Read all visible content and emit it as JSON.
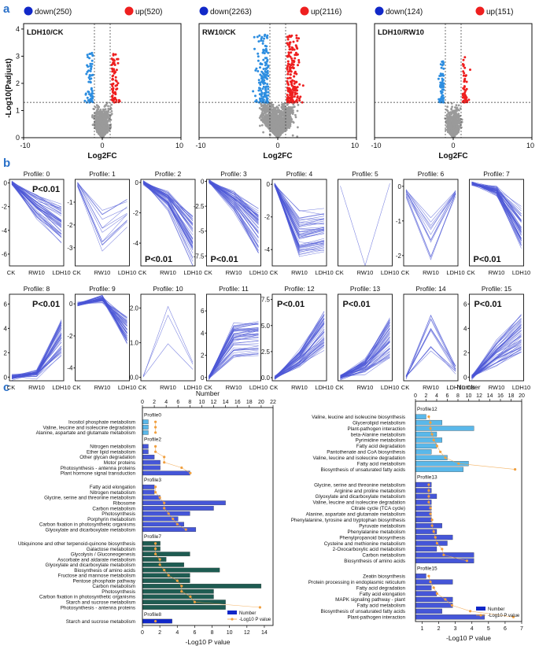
{
  "colors": {
    "down": "#2e8ee0",
    "up": "#ee1f1f",
    "ns": "#9a9a9a",
    "profile_line": "#4b55d6",
    "c_light": "#5ab8ea",
    "c_mid": "#4556d8",
    "c_dark": "#1e5c52",
    "c_blue": "#1128c8",
    "dot": "#f0a040"
  },
  "panel_labels": {
    "a": "a",
    "b": "b",
    "c": "c"
  },
  "panel_a": {
    "ylabel": "-Log10(Padjust)",
    "plots": [
      {
        "id": "ldh10_ck",
        "title": "LDH10/CK",
        "down_label": "down(250)",
        "up_label": "up(520)",
        "xlabel": "Log2FC",
        "x_ticks": [
          "-10",
          "0",
          "10"
        ],
        "y_ticks": [
          "0",
          "1",
          "2",
          "3",
          "4"
        ],
        "ylim": [
          0,
          4.2
        ],
        "xlim": [
          -10,
          10
        ],
        "density": 1.0,
        "spread": 0.55
      },
      {
        "id": "rw10_ck",
        "title": "RW10/CK",
        "down_label": "down(2263)",
        "up_label": "up(2116)",
        "xlabel": "Log2FC",
        "x_ticks": [
          "-10",
          "0",
          "10"
        ],
        "y_ticks": [],
        "ylim": [
          0,
          4.2
        ],
        "xlim": [
          -10,
          10
        ],
        "density": 2.4,
        "spread": 1.0
      },
      {
        "id": "ldh10_rw10",
        "title": "LDH10/RW10",
        "down_label": "down(124)",
        "up_label": "up(151)",
        "xlabel": "Log2FC",
        "x_ticks": [
          "-10",
          "0",
          "10"
        ],
        "y_ticks": [],
        "ylim": [
          0,
          4.2
        ],
        "xlim": [
          -10,
          10
        ],
        "density": 0.8,
        "spread": 0.45
      }
    ]
  },
  "panel_b": {
    "x_ticks": [
      "CK",
      "RW10",
      "LDH10"
    ],
    "profiles": [
      {
        "title": "Profile: 0",
        "pval": "P<0.01",
        "pval_pos": "top",
        "y_ticks": [
          "0",
          "-2",
          "-4",
          "-6"
        ],
        "ylim": [
          -7,
          0.3
        ],
        "pattern": [
          0,
          -2,
          -3.5
        ]
      },
      {
        "title": "Profile: 1",
        "pval": "",
        "pval_pos": "",
        "y_ticks": [
          "-1",
          "-2",
          "-3"
        ],
        "ylim": [
          -3.8,
          0
        ],
        "pattern": [
          -0.2,
          -2.2,
          -1.4
        ]
      },
      {
        "title": "Profile: 2",
        "pval": "P<0.01",
        "pval_pos": "bottom",
        "y_ticks": [
          "0",
          "-2",
          "-4"
        ],
        "ylim": [
          -5.5,
          0.2
        ],
        "pattern": [
          0,
          -1.2,
          -3.8
        ]
      },
      {
        "title": "Profile: 3",
        "pval": "P<0.01",
        "pval_pos": "bottom",
        "y_ticks": [
          "0",
          "-2.5",
          "-5",
          "-7.5"
        ],
        "ylim": [
          -8.5,
          0.2
        ],
        "pattern": [
          0,
          -2,
          -5
        ]
      },
      {
        "title": "Profile: 4",
        "pval": "",
        "pval_pos": "",
        "y_ticks": [
          "0",
          "-2",
          "-4"
        ],
        "ylim": [
          -5,
          0.3
        ],
        "pattern": [
          0,
          -3,
          -2.8
        ]
      },
      {
        "title": "Profile: 5",
        "pval": "",
        "pval_pos": "",
        "y_ticks": [],
        "ylim": [
          -4,
          0.3
        ],
        "pattern": [
          0,
          -3.6,
          0
        ]
      },
      {
        "title": "Profile: 6",
        "pval": "",
        "pval_pos": "",
        "y_ticks": [
          "0",
          "-1",
          "-2"
        ],
        "ylim": [
          -2.3,
          0.2
        ],
        "pattern": [
          -0.2,
          -1.6,
          -0.2
        ]
      },
      {
        "title": "Profile: 7",
        "pval": "P<0.01",
        "pval_pos": "bottom",
        "y_ticks": [],
        "ylim": [
          -6,
          0.3
        ],
        "pattern": [
          0,
          -0.5,
          -3.2
        ]
      },
      {
        "title": "Profile: 8",
        "pval": "P<0.01",
        "pval_pos": "top",
        "y_ticks": [
          "6",
          "4",
          "2",
          "0"
        ],
        "ylim": [
          -0.3,
          6.8
        ],
        "pattern": [
          0,
          0.3,
          3.2
        ]
      },
      {
        "title": "Profile: 9",
        "pval": "",
        "pval_pos": "",
        "y_ticks": [
          "0",
          "-2",
          "-4"
        ],
        "ylim": [
          -4.8,
          0.6
        ],
        "pattern": [
          0,
          0.3,
          -1.6
        ]
      },
      {
        "title": "Profile: 10",
        "pval": "",
        "pval_pos": "",
        "y_ticks": [
          "2.0",
          "1.0",
          "0.0"
        ],
        "ylim": [
          -0.1,
          2.4
        ],
        "pattern": [
          0,
          1.6,
          0.3
        ]
      },
      {
        "title": "Profile: 11",
        "pval": "",
        "pval_pos": "",
        "y_ticks": [
          "6",
          "4",
          "2",
          "0"
        ],
        "ylim": [
          -0.3,
          7.5
        ],
        "pattern": [
          0,
          3.4,
          3.6
        ]
      },
      {
        "title": "Profile: 12",
        "pval": "P<0.01",
        "pval_pos": "top",
        "y_ticks": [
          "7.5",
          "5.0",
          "2.5",
          "0.0"
        ],
        "ylim": [
          -0.3,
          8
        ],
        "pattern": [
          0,
          1.8,
          4.6
        ]
      },
      {
        "title": "Profile: 13",
        "pval": "P<0.01",
        "pval_pos": "top",
        "y_ticks": [],
        "ylim": [
          -0.3,
          7
        ],
        "pattern": [
          0,
          1.0,
          3.4
        ]
      },
      {
        "title": "Profile: 14",
        "pval": "",
        "pval_pos": "",
        "y_ticks": [],
        "ylim": [
          -0.3,
          6.5
        ],
        "pattern": [
          0,
          3.5,
          0.6
        ]
      },
      {
        "title": "Profile: 15",
        "pval": "P<0.01",
        "pval_pos": "top",
        "y_ticks": [
          "6",
          "4",
          "2",
          "0"
        ],
        "ylim": [
          -0.3,
          6.8
        ],
        "pattern": [
          0,
          2.0,
          3.6
        ]
      }
    ]
  },
  "chart_data": [
    {
      "type": "bar",
      "id": "enrichment_left",
      "title": "",
      "top_axis_label": "Number",
      "bottom_axis_label": "-Log10 P value",
      "top_ticks": [
        "0",
        "2",
        "4",
        "6",
        "8",
        "10",
        "12",
        "14",
        "16",
        "18",
        "20",
        "22"
      ],
      "number_lim": [
        0,
        22
      ],
      "bottom_ticks": [
        "0",
        "2",
        "4",
        "6",
        "8",
        "10",
        "12",
        "14"
      ],
      "pval_lim": [
        0,
        15
      ],
      "legend": {
        "bar": "Number",
        "dot": "-Log10 P value"
      },
      "groups": [
        {
          "name": "Profile0",
          "color": "c_light",
          "terms": [
            {
              "term": "Inositol phosphate metabolism",
              "number": 1,
              "pvalue": 1.5
            },
            {
              "term": "Valine, leucine and isoleucine degradation",
              "number": 1,
              "pvalue": 1.5
            },
            {
              "term": "Alanine, aspartate and glutamate metabolism",
              "number": 1,
              "pvalue": 1.5
            }
          ]
        },
        {
          "name": "Profile2",
          "color": "c_mid",
          "terms": [
            {
              "term": "Nitrogen metabolism",
              "number": 1,
              "pvalue": 1.5
            },
            {
              "term": "Ether lipid metabolism",
              "number": 1,
              "pvalue": 1.5
            },
            {
              "term": "Other glycan degradation",
              "number": 2,
              "pvalue": 2.5
            },
            {
              "term": "Motor proteins",
              "number": 3,
              "pvalue": 2.5
            },
            {
              "term": "Photosynthesis - antenna proteins",
              "number": 3,
              "pvalue": 4.5
            },
            {
              "term": "Plant hormone signal transduction",
              "number": 8,
              "pvalue": 5.5
            }
          ]
        },
        {
          "name": "Profile3",
          "color": "c_mid",
          "terms": [
            {
              "term": "Fatty acid elongation",
              "number": 2,
              "pvalue": 1.5
            },
            {
              "term": "Nitrogen metabolism",
              "number": 2,
              "pvalue": 1.5
            },
            {
              "term": "Glycine, serine and threonine metabolism",
              "number": 3,
              "pvalue": 2
            },
            {
              "term": "Ribosome",
              "number": 14,
              "pvalue": 2.5
            },
            {
              "term": "Carbon metabolism",
              "number": 12,
              "pvalue": 2.5
            },
            {
              "term": "Photosynthesis",
              "number": 8,
              "pvalue": 3
            },
            {
              "term": "Porphyrin metabolism",
              "number": 6,
              "pvalue": 3.5
            },
            {
              "term": "Carbon fixation in photosynthetic organisms",
              "number": 7,
              "pvalue": 4
            },
            {
              "term": "Glyoxylate and dicarboxylate metabolism",
              "number": 9,
              "pvalue": 5
            }
          ]
        },
        {
          "name": "Profile7",
          "color": "c_dark",
          "terms": [
            {
              "term": "Ubiquinone and other terpenoid-quinone biosynthesis",
              "number": 3,
              "pvalue": 1.5
            },
            {
              "term": "Galactose metabolism",
              "number": 3,
              "pvalue": 1.5
            },
            {
              "term": "Glycolysis / Gluconeogenesis",
              "number": 8,
              "pvalue": 1.5
            },
            {
              "term": "Ascorbate and aldarate metabolism",
              "number": 4,
              "pvalue": 2
            },
            {
              "term": "Glyoxylate and dicarboxylate metabolism",
              "number": 7,
              "pvalue": 2
            },
            {
              "term": "Biosynthesis of amino acids",
              "number": 13,
              "pvalue": 2.5
            },
            {
              "term": "Fructose and mannose metabolism",
              "number": 8,
              "pvalue": 3
            },
            {
              "term": "Pentose phosphate pathway",
              "number": 8,
              "pvalue": 4
            },
            {
              "term": "Carbon metabolism",
              "number": 20,
              "pvalue": 4.5
            },
            {
              "term": "Photosynthesis",
              "number": 12,
              "pvalue": 4.5
            },
            {
              "term": "Carbon fixation in photosynthetic organisms",
              "number": 12,
              "pvalue": 5.5
            },
            {
              "term": "Starch and sucrose metabolism",
              "number": 14,
              "pvalue": 6
            },
            {
              "term": "Photosynthesis - antenna proteins",
              "number": 14,
              "pvalue": 13.5
            }
          ]
        },
        {
          "name": "Profile8",
          "color": "c_blue",
          "terms": [
            {
              "term": "Starch and sucrose metabolism",
              "number": 5,
              "pvalue": 1.5
            }
          ]
        }
      ]
    },
    {
      "type": "bar",
      "id": "enrichment_right",
      "title": "",
      "top_axis_label": "Number",
      "bottom_axis_label": "-Log10 P value",
      "top_ticks": [
        "0",
        "2",
        "4",
        "6",
        "8",
        "10",
        "12",
        "14",
        "16",
        "18",
        "20"
      ],
      "number_lim": [
        0,
        20
      ],
      "bottom_ticks": [
        "1",
        "2",
        "3",
        "4",
        "5",
        "6",
        "7"
      ],
      "pval_lim": [
        0.6,
        7
      ],
      "legend": {
        "bar": "Number",
        "dot": "-Log10 P value"
      },
      "groups": [
        {
          "name": "Profile12",
          "color": "c_light",
          "terms": [
            {
              "term": "Valine, leucine and isoleucine biosynthesis",
              "number": 2,
              "pvalue": 1.4
            },
            {
              "term": "Glycerolipid metabolism",
              "number": 5,
              "pvalue": 1.5
            },
            {
              "term": "Plant-pathogen interaction",
              "number": 11,
              "pvalue": 1.5
            },
            {
              "term": "beta-Alanine metabolism",
              "number": 4,
              "pvalue": 1.6
            },
            {
              "term": "Pyrimidine metabolism",
              "number": 5,
              "pvalue": 1.7
            },
            {
              "term": "Fatty acid degradation",
              "number": 4,
              "pvalue": 1.9
            },
            {
              "term": "Pantothenate and CoA biosynthesis",
              "number": 3,
              "pvalue": 2.1
            },
            {
              "term": "Valine, leucine and isoleucine degradation",
              "number": 6,
              "pvalue": 2.4
            },
            {
              "term": "Fatty acid metabolism",
              "number": 10,
              "pvalue": 3.2
            },
            {
              "term": "Biosynthesis of unsaturated fatty acids",
              "number": 9,
              "pvalue": 6.6
            }
          ]
        },
        {
          "name": "Profile13",
          "color": "c_mid",
          "terms": [
            {
              "term": "Glycine, serine and threonine metabolism",
              "number": 3,
              "pvalue": 1.4
            },
            {
              "term": "Arginine and proline metabolism",
              "number": 3,
              "pvalue": 1.4
            },
            {
              "term": "Glyoxylate and dicarboxylate metabolism",
              "number": 4,
              "pvalue": 1.4
            },
            {
              "term": "Valine, leucine and isoleucine degradation",
              "number": 3,
              "pvalue": 1.4
            },
            {
              "term": "Citrate cycle (TCA cycle)",
              "number": 3,
              "pvalue": 1.5
            },
            {
              "term": "Alanine, aspartate and glutamate metabolism",
              "number": 3,
              "pvalue": 1.5
            },
            {
              "term": "Phenylalanine, tyrosine and tryptophan biosynthesis",
              "number": 3,
              "pvalue": 1.6
            },
            {
              "term": "Pyruvate metabolism",
              "number": 5,
              "pvalue": 1.6
            },
            {
              "term": "Phenylalanine metabolism",
              "number": 4,
              "pvalue": 1.7
            },
            {
              "term": "Phenylpropanoid biosynthesis",
              "number": 7,
              "pvalue": 1.8
            },
            {
              "term": "Cysteine and methionine metabolism",
              "number": 6,
              "pvalue": 1.9
            },
            {
              "term": "2-Oxocarboxylic acid metabolism",
              "number": 4,
              "pvalue": 2.2
            },
            {
              "term": "Carbon metabolism",
              "number": 11,
              "pvalue": 2.3
            },
            {
              "term": "Biosynthesis of amino acids",
              "number": 11,
              "pvalue": 3.7
            }
          ]
        },
        {
          "name": "Profile15",
          "color": "c_mid",
          "terms": [
            {
              "term": "Zeatin biosynthesis",
              "number": 2,
              "pvalue": 1.4
            },
            {
              "term": "Protein processing in endoplasmic reticulum",
              "number": 7,
              "pvalue": 1.5
            },
            {
              "term": "Fatty acid degradation",
              "number": 3,
              "pvalue": 1.7
            },
            {
              "term": "Fatty acid elongation",
              "number": 4,
              "pvalue": 1.9
            },
            {
              "term": "MAPK signaling pathway - plant",
              "number": 7,
              "pvalue": 2.4
            },
            {
              "term": "Fatty acid metabolism",
              "number": 7,
              "pvalue": 2.8
            },
            {
              "term": "Biosynthesis of unsaturated fatty acids",
              "number": 5,
              "pvalue": 3.9
            },
            {
              "term": "Plant-pathogen interaction",
              "number": 13,
              "pvalue": 6.5
            }
          ]
        }
      ]
    }
  ]
}
